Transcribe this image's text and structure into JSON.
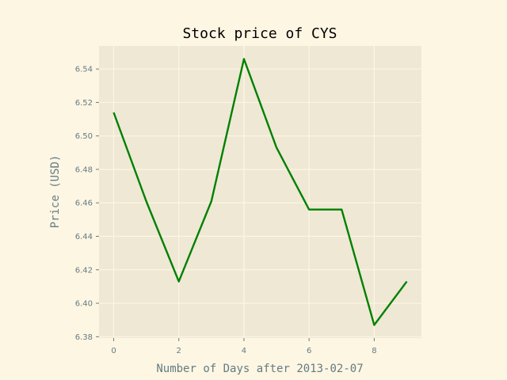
{
  "chart_data": {
    "type": "line",
    "title": "Stock price of CYS",
    "xlabel": "Number of Days after 2013-02-07",
    "ylabel": "Price (USD)",
    "x": [
      0,
      1,
      2,
      3,
      4,
      5,
      6,
      7,
      8,
      9
    ],
    "series": [
      {
        "values": [
          6.514,
          6.461,
          6.413,
          6.461,
          6.546,
          6.493,
          6.456,
          6.456,
          6.387,
          6.413
        ]
      }
    ],
    "xlim": [
      -0.45,
      9.45
    ],
    "ylim": [
      6.3792,
      6.5538
    ],
    "xticks": [
      0,
      2,
      4,
      6,
      8
    ],
    "xtick_labels": [
      "0",
      "2",
      "4",
      "6",
      "8"
    ],
    "yticks": [
      6.38,
      6.4,
      6.42,
      6.44,
      6.46,
      6.48,
      6.5,
      6.52,
      6.54
    ],
    "ytick_labels": [
      "6.38",
      "6.40",
      "6.42",
      "6.44",
      "6.46",
      "6.48",
      "6.50",
      "6.52",
      "6.54"
    ],
    "grid": true,
    "colors": {
      "figure_background": "#fdf6e3",
      "plot_background": "#eee8d5",
      "grid": "#fdf6e3",
      "line": "#008000",
      "text": "#657b83"
    }
  }
}
